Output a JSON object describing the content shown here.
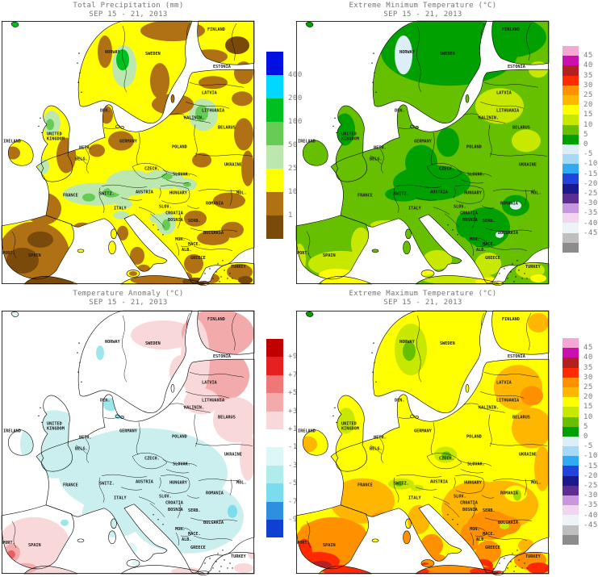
{
  "panels": [
    {
      "id": "precip",
      "title": "Total Precipitation (mm)",
      "subtitle": "SEP 15 - 21, 2013",
      "legend": {
        "labels": [
          "400",
          "200",
          "100",
          "50",
          "25",
          "10",
          "1"
        ],
        "colors": [
          "#0010E0",
          "#00D8FF",
          "#00C020",
          "#66CC55",
          "#BCE8B0",
          "#FFFF00",
          "#B07014",
          "#7A4A0A"
        ]
      }
    },
    {
      "id": "tmin",
      "title": "Extreme Minimum Temperature (°C)",
      "subtitle": "SEP 15 - 21, 2013",
      "legend": {
        "labels": [
          "45",
          "40",
          "35",
          "30",
          "25",
          "20",
          "15",
          "10",
          "5",
          "0",
          "-5",
          "-10",
          "-15",
          "-20",
          "-25",
          "-30",
          "-35",
          "-40",
          "-45"
        ],
        "colors": [
          "#F4A7D5",
          "#CC10B0",
          "#B22020",
          "#FF2A00",
          "#FF9000",
          "#FFB600",
          "#FFFF00",
          "#C8E800",
          "#66C000",
          "#00A000",
          "#DCEEF8",
          "#A6D9F5",
          "#30AAF0",
          "#2244DD",
          "#1A1A8C",
          "#5C2E91",
          "#C897DE",
          "#F2D5EE",
          "#EDF4F8",
          "#BFBFBF",
          "#8C8C8C"
        ]
      }
    },
    {
      "id": "anom",
      "title": "Temperature Anomaly (°C)",
      "subtitle": "SEP 15 - 21, 2013",
      "legend": {
        "labels": [
          "+9",
          "+7",
          "+5",
          "+3",
          "+1",
          "-1",
          "-3",
          "-5",
          "-7",
          "-9"
        ],
        "colors": [
          "#C00000",
          "#E62020",
          "#EE7777",
          "#F2AAAA",
          "#F8D8D8",
          "#FFFFFF",
          "#DDF6F6",
          "#B0ECEC",
          "#7ADCEC",
          "#2E8FE0",
          "#1040D0"
        ]
      }
    },
    {
      "id": "tmax",
      "title": "Extreme Maximum Temperature (°C)",
      "subtitle": "SEP 15 - 21, 2013",
      "legend": {
        "labels": [
          "45",
          "40",
          "35",
          "30",
          "25",
          "20",
          "15",
          "10",
          "5",
          "0",
          "-5",
          "-10",
          "-15",
          "-20",
          "-25",
          "-30",
          "-35",
          "-40",
          "-45"
        ],
        "colors": [
          "#F4A7D5",
          "#CC10B0",
          "#B22020",
          "#FF2A00",
          "#FF9000",
          "#FFB600",
          "#FFFF00",
          "#C8E800",
          "#66C000",
          "#00A000",
          "#DCEEF8",
          "#A6D9F5",
          "#30AAF0",
          "#2244DD",
          "#1A1A8C",
          "#5C2E91",
          "#C897DE",
          "#F2D5EE",
          "#EDF4F8",
          "#BFBFBF",
          "#8C8C8C"
        ]
      }
    }
  ],
  "map_labels": [
    "NORWAY",
    "SWEDEN",
    "FINLAND",
    "ESTONIA",
    "LATVIA",
    "LITHUANIA",
    "KALININ.",
    "BELARUS",
    "DEN.",
    "UNITED KINGDOM",
    "IRELAND",
    "NETH.",
    "BELG.",
    "GERMANY",
    "POLAND",
    "CZECH.",
    "SLOVAK.",
    "UKRAINE",
    "FRANCE",
    "SWITZ.",
    "AUSTRIA",
    "HUNGARY",
    "SLOV.",
    "CROATIA",
    "BOSNIA",
    "SERB.",
    "MON.",
    "MACE.",
    "ALB.",
    "ROMANIA",
    "MOL.",
    "BULGARIA",
    "ITALY",
    "SPAIN",
    "PORT.",
    "GREECE",
    "TURKEY"
  ]
}
